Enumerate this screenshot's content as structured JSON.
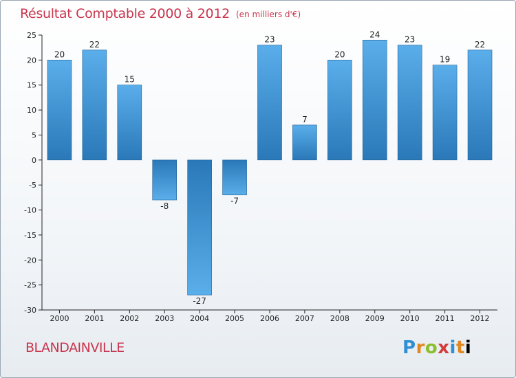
{
  "header": {
    "title": "Résultat Comptable 2000 à 2012",
    "subtitle": "(en milliers d'€)"
  },
  "footer": {
    "commune": "BLANDAINVILLE",
    "brand": [
      "P",
      "r",
      "o",
      "x",
      "i",
      "t",
      "i"
    ]
  },
  "colors": {
    "title": "#c8364e",
    "bar_light": "#5aaeea",
    "bar_dark": "#2a78b8"
  },
  "chart_data": {
    "type": "bar",
    "title": "Résultat Comptable 2000 à 2012",
    "subtitle": "(en milliers d'€)",
    "categories": [
      "2000",
      "2001",
      "2002",
      "2003",
      "2004",
      "2005",
      "2006",
      "2007",
      "2008",
      "2009",
      "2010",
      "2011",
      "2012"
    ],
    "values": [
      20,
      22,
      15,
      -8,
      -27,
      -7,
      23,
      7,
      20,
      24,
      23,
      19,
      22
    ],
    "ylim": [
      -30,
      25
    ],
    "yticks": [
      25,
      20,
      15,
      10,
      5,
      0,
      -5,
      -10,
      -15,
      -20,
      -25,
      -30
    ],
    "xlabel": "",
    "ylabel": "",
    "grid": false
  }
}
